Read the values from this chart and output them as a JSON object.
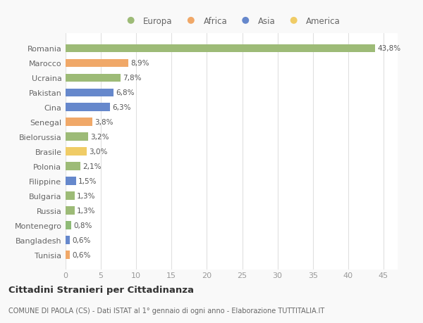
{
  "countries": [
    "Tunisia",
    "Bangladesh",
    "Montenegro",
    "Russia",
    "Bulgaria",
    "Filippine",
    "Polonia",
    "Brasile",
    "Bielorussia",
    "Senegal",
    "Cina",
    "Pakistan",
    "Ucraina",
    "Marocco",
    "Romania"
  ],
  "values": [
    0.6,
    0.6,
    0.8,
    1.3,
    1.3,
    1.5,
    2.1,
    3.0,
    3.2,
    3.8,
    6.3,
    6.8,
    7.8,
    8.9,
    43.8
  ],
  "labels": [
    "0,6%",
    "0,6%",
    "0,8%",
    "1,3%",
    "1,3%",
    "1,5%",
    "2,1%",
    "3,0%",
    "3,2%",
    "3,8%",
    "6,3%",
    "6,8%",
    "7,8%",
    "8,9%",
    "43,8%"
  ],
  "colors": [
    "#f0a868",
    "#6688cc",
    "#8fbb77",
    "#9dbb77",
    "#9dbb77",
    "#6688cc",
    "#9dbb77",
    "#f0cc66",
    "#9dbb77",
    "#f0a868",
    "#6688cc",
    "#6688cc",
    "#9dbb77",
    "#f0a868",
    "#9dbb77"
  ],
  "legend_labels": [
    "Europa",
    "Africa",
    "Asia",
    "America"
  ],
  "legend_colors": [
    "#9dbb77",
    "#f0a868",
    "#6688cc",
    "#f0cc66"
  ],
  "title": "Cittadini Stranieri per Cittadinanza",
  "subtitle": "COMUNE DI PAOLA (CS) - Dati ISTAT al 1° gennaio di ogni anno - Elaborazione TUTTITALIA.IT",
  "xlim": [
    0,
    47
  ],
  "xticks": [
    0,
    5,
    10,
    15,
    20,
    25,
    30,
    35,
    40,
    45
  ],
  "background_color": "#f9f9f9",
  "bar_background": "#ffffff",
  "grid_color": "#e0e0e0"
}
